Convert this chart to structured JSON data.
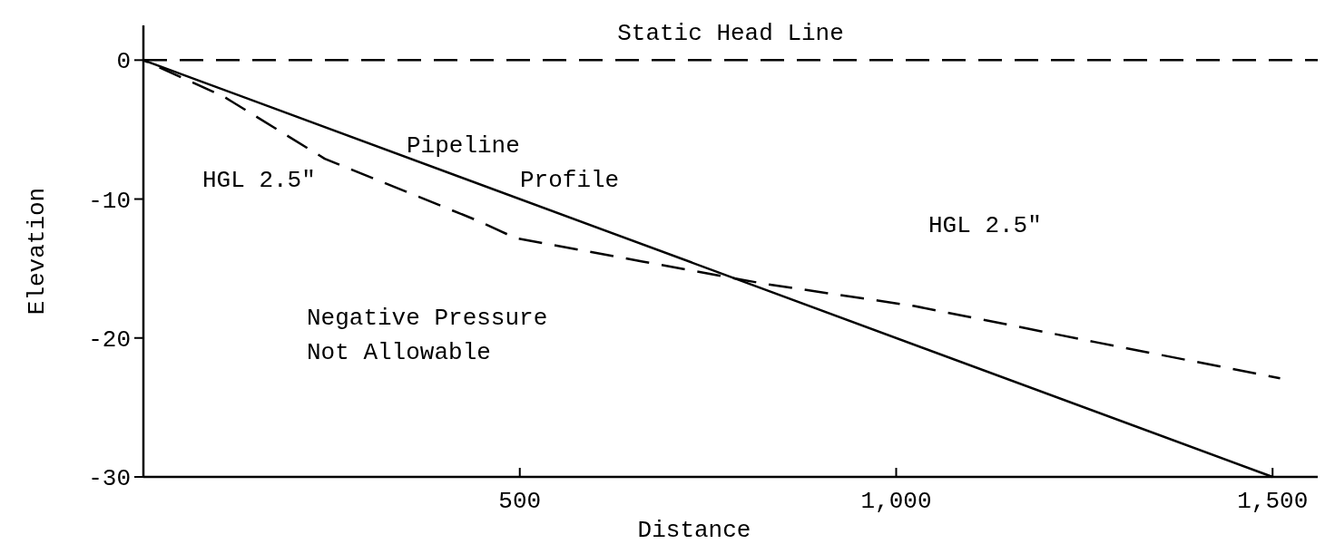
{
  "chart_data": {
    "type": "line",
    "xlabel": "Distance",
    "ylabel": "Elevation",
    "xlim": [
      0,
      1560
    ],
    "ylim": [
      -30,
      2.5
    ],
    "xticks": [
      500,
      {
        "value": 1000,
        "label": "1,000"
      },
      {
        "value": 1500,
        "label": "1,500"
      }
    ],
    "yticks": [
      0,
      -10,
      -20,
      -30
    ],
    "grid": false,
    "series": [
      {
        "color": "#000000",
        "line_style": "solid",
        "x": [
          0,
          1500
        ],
        "values": [
          0,
          -30
        ]
      },
      {
        "color": "#000000",
        "line_style": "dashed",
        "x": [
          0,
          106,
          241,
          446,
          494,
          663,
          825,
          1024,
          1265,
          1510
        ],
        "values": [
          0,
          -2.6,
          -7.1,
          -11.6,
          -12.8,
          -14.5,
          -16.1,
          -17.7,
          -20.3,
          -22.9
        ]
      }
    ],
    "ref_lines": [
      {
        "axis": "y",
        "value": 0,
        "label": "Static Head Line",
        "color": "#000000",
        "line_style": "dashed"
      }
    ],
    "annotations": [
      "Pipeline\nProfile",
      "HGL 2.5\"",
      "HGL 2.5\"",
      "Negative Pressure\nNot Allowable"
    ]
  }
}
